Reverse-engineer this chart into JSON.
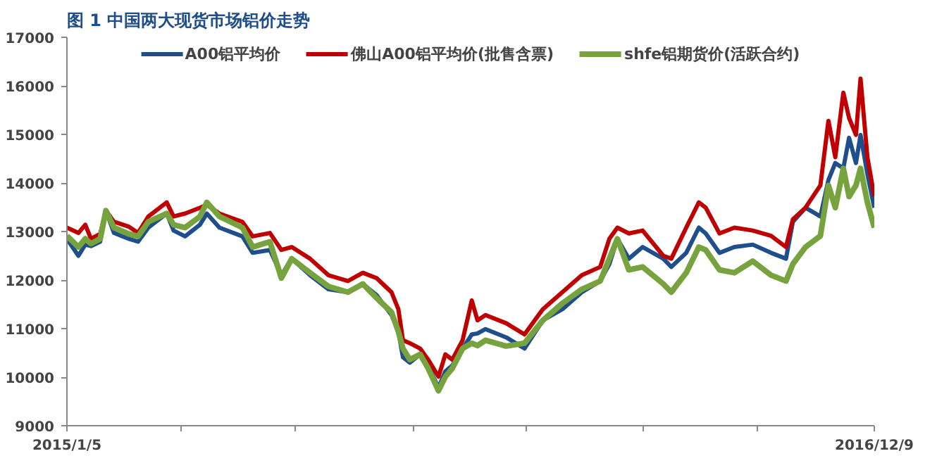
{
  "chart_data": {
    "type": "line",
    "title": "图 1  中国两大现货市场铝价走势",
    "x": [
      "2015-01-05",
      "2015-01-15",
      "2015-01-21",
      "2015-01-26",
      "2015-02-03",
      "2015-02-08",
      "2015-02-15",
      "2015-02-28",
      "2015-03-08",
      "2015-03-17",
      "2015-04-02",
      "2015-04-08",
      "2015-04-18",
      "2015-05-01",
      "2015-05-07",
      "2015-05-18",
      "2015-06-07",
      "2015-06-16",
      "2015-07-01",
      "2015-07-11",
      "2015-07-20",
      "2015-08-05",
      "2015-08-21",
      "2015-09-07",
      "2015-09-20",
      "2015-10-02",
      "2015-10-15",
      "2015-10-21",
      "2015-10-25",
      "2015-10-31",
      "2015-11-09",
      "2015-11-16",
      "2015-11-25",
      "2015-12-01",
      "2015-12-07",
      "2015-12-16",
      "2015-12-24",
      "2015-12-29",
      "2016-01-05",
      "2016-01-23",
      "2016-02-08",
      "2016-02-24",
      "2016-03-12",
      "2016-03-29",
      "2016-04-14",
      "2016-04-22",
      "2016-04-29",
      "2016-05-09",
      "2016-05-21",
      "2016-06-08",
      "2016-06-15",
      "2016-06-28",
      "2016-07-09",
      "2016-07-15",
      "2016-07-27",
      "2016-08-09",
      "2016-08-25",
      "2016-09-10",
      "2016-09-23",
      "2016-09-29",
      "2016-10-10",
      "2016-10-23",
      "2016-10-30",
      "2016-11-05",
      "2016-11-12",
      "2016-11-17",
      "2016-11-23",
      "2016-11-27",
      "2016-12-03",
      "2016-12-09"
    ],
    "series": [
      {
        "name": "A00铝平均价",
        "color": "#1f4e8c",
        "values": [
          12850,
          12500,
          12730,
          12700,
          12790,
          13430,
          12970,
          12850,
          12790,
          13080,
          13370,
          13020,
          12900,
          13140,
          13370,
          13080,
          12900,
          12560,
          12620,
          12100,
          12440,
          12100,
          11810,
          11750,
          11920,
          11690,
          11280,
          10940,
          10410,
          10300,
          10470,
          10240,
          9780,
          10120,
          10240,
          10590,
          10880,
          10900,
          10990,
          10820,
          10590,
          11170,
          11400,
          11750,
          11980,
          12330,
          12850,
          12440,
          12680,
          12440,
          12270,
          12560,
          13080,
          12960,
          12560,
          12680,
          12730,
          12560,
          12440,
          13200,
          13490,
          13310,
          14060,
          14410,
          14300,
          14930,
          14410,
          14990,
          14180,
          13490
        ]
      },
      {
        "name": "佛山A00铝平均价(批售含票)",
        "color": "#c00000",
        "values": [
          13080,
          12970,
          13140,
          12850,
          12950,
          13430,
          13200,
          13100,
          12970,
          13310,
          13600,
          13310,
          13370,
          13490,
          13550,
          13370,
          13200,
          12900,
          12970,
          12620,
          12680,
          12440,
          12100,
          11980,
          12150,
          12040,
          11750,
          11400,
          10760,
          10700,
          10590,
          10360,
          10010,
          10470,
          10360,
          10760,
          11580,
          11170,
          11280,
          11110,
          10880,
          11400,
          11750,
          12100,
          12270,
          12850,
          13080,
          12960,
          13020,
          12500,
          12440,
          13080,
          13600,
          13490,
          12960,
          13080,
          13020,
          12910,
          12680,
          13250,
          13490,
          13950,
          15280,
          14530,
          15860,
          15340,
          14990,
          16150,
          14530,
          13720
        ]
      },
      {
        "name": "shfe铝期货价(活跃合约)",
        "color": "#77a33f",
        "values": [
          12910,
          12680,
          12850,
          12750,
          12850,
          13430,
          13080,
          12950,
          12900,
          13200,
          13370,
          13140,
          13080,
          13310,
          13600,
          13310,
          13080,
          12680,
          12790,
          12040,
          12440,
          12150,
          11870,
          11750,
          11920,
          11630,
          11340,
          10940,
          10590,
          10360,
          10470,
          10180,
          9720,
          10010,
          10180,
          10590,
          10700,
          10650,
          10760,
          10640,
          10700,
          11170,
          11520,
          11810,
          11980,
          12440,
          12850,
          12210,
          12270,
          11920,
          11750,
          12150,
          12680,
          12620,
          12210,
          12150,
          12390,
          12100,
          11980,
          12330,
          12680,
          12910,
          13950,
          13490,
          14300,
          13720,
          13950,
          14300,
          13600,
          13080
        ]
      }
    ],
    "xlim": [
      "2015-01-05",
      "2016-12-09"
    ],
    "xticks": [
      {
        "value": "2015-01-05",
        "label": "2015/1/5"
      },
      {
        "value": "2015-04-15",
        "label": null
      },
      {
        "value": "2015-07-23",
        "label": null
      },
      {
        "value": "2015-11-03",
        "label": null
      },
      {
        "value": "2016-02-10",
        "label": null
      },
      {
        "value": "2016-05-21",
        "label": null
      },
      {
        "value": "2016-08-29",
        "label": null
      },
      {
        "value": "2016-12-09",
        "label": "2016/12/9"
      }
    ],
    "ylim": [
      9000,
      17000
    ],
    "yticks": [
      9000,
      10000,
      11000,
      12000,
      13000,
      14000,
      15000,
      16000,
      17000
    ],
    "grid": false,
    "legend": "top",
    "line_style": "solid",
    "marker": "none"
  }
}
